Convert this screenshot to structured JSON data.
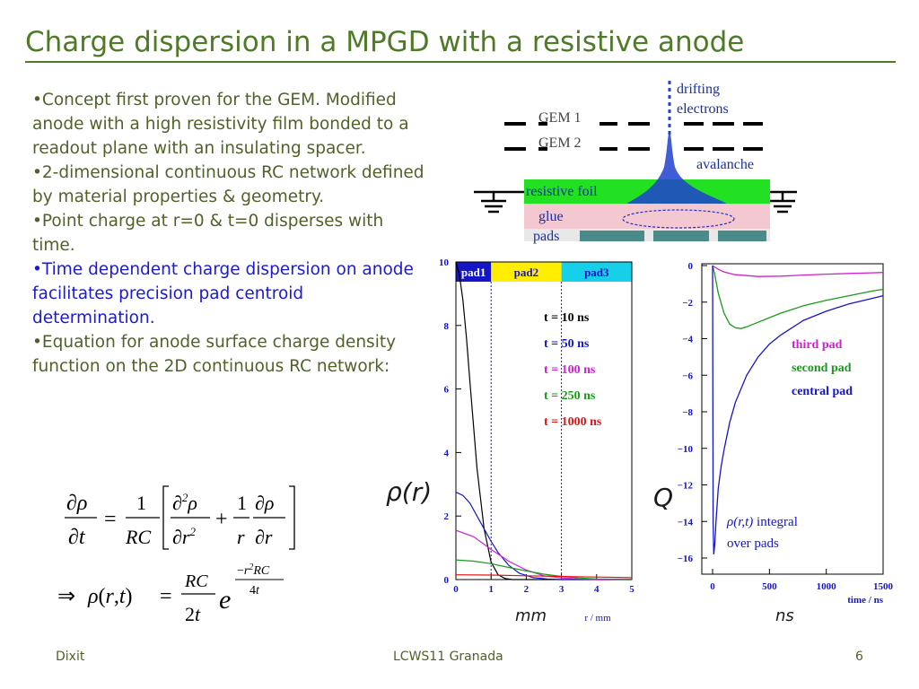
{
  "slide": {
    "title": "Charge dispersion in a MPGD with a resistive anode",
    "bullets": [
      {
        "text": "•Concept first proven for the GEM. Modified anode with a high resistivity film bonded to a readout plane with an insulating spacer.",
        "highlight": false
      },
      {
        "text": "•2-dimensional continuous RC network defined by material properties & geometry.",
        "highlight": false
      },
      {
        "text": "•Point charge at r=0 & t=0 disperses with time.",
        "highlight": false
      },
      {
        "text": "•Time dependent charge dispersion on anode facilitates precision pad centroid determination.",
        "highlight": true
      },
      {
        "text": "•Equation for anode surface charge density function on the 2D continuous RC network:",
        "highlight": false
      }
    ],
    "footer": {
      "left": "Dixit",
      "center": "LCWS11 Granada",
      "right": "6"
    }
  },
  "diagram": {
    "labels": {
      "drifting": "drifting",
      "electrons": "electrons",
      "gem1": "GEM 1",
      "gem2": "GEM 2",
      "avalanche": "avalanche",
      "resistive_foil": "resistive foil",
      "glue": "glue",
      "pads": "pads"
    }
  },
  "chart_data": [
    {
      "type": "line",
      "title": "",
      "ylabel": "ρ(r)",
      "xlabel": "r / mm",
      "unit_label": "mm",
      "xlim": [
        0,
        5
      ],
      "ylim": [
        0,
        10
      ],
      "xticks": [
        0,
        1,
        2,
        3,
        4,
        5
      ],
      "yticks": [
        0,
        2,
        4,
        6,
        8,
        10
      ],
      "pad_labels": [
        "pad1",
        "pad2",
        "pad3"
      ],
      "legend_placement": "top-right",
      "series": [
        {
          "name": "t = 10 ns",
          "color": "#000000",
          "x": [
            0,
            0.1,
            0.2,
            0.3,
            0.4,
            0.6,
            0.8,
            1.0,
            1.2,
            1.4,
            1.6,
            5
          ],
          "y": [
            10.0,
            9.6,
            8.8,
            7.6,
            6.2,
            3.5,
            1.6,
            0.55,
            0.15,
            0.03,
            0.0,
            0.0
          ]
        },
        {
          "name": "t = 50 ns",
          "color": "#1515c8",
          "x": [
            0,
            0.2,
            0.4,
            0.6,
            0.8,
            1.0,
            1.2,
            1.5,
            1.8,
            2.2,
            2.6,
            3.0,
            5
          ],
          "y": [
            2.75,
            2.65,
            2.4,
            2.0,
            1.6,
            1.2,
            0.85,
            0.45,
            0.2,
            0.06,
            0.02,
            0.0,
            0.0
          ]
        },
        {
          "name": "t = 100 ns",
          "color": "#d020d0",
          "x": [
            0,
            0.5,
            1.0,
            1.5,
            2.0,
            2.5,
            3.0,
            3.5,
            4.0,
            5
          ],
          "y": [
            1.55,
            1.35,
            0.95,
            0.58,
            0.3,
            0.12,
            0.05,
            0.02,
            0.0,
            0.0
          ]
        },
        {
          "name": "t = 250 ns",
          "color": "#1a9a1a",
          "x": [
            0,
            0.5,
            1.0,
            1.5,
            2.0,
            2.5,
            3.0,
            3.5,
            4.0,
            4.5,
            5.0
          ],
          "y": [
            0.62,
            0.58,
            0.5,
            0.38,
            0.27,
            0.17,
            0.1,
            0.05,
            0.02,
            0.01,
            0.0
          ]
        },
        {
          "name": "t = 1000 ns",
          "color": "#e01515",
          "x": [
            0,
            1,
            2,
            3,
            4,
            5
          ],
          "y": [
            0.15,
            0.14,
            0.12,
            0.1,
            0.08,
            0.06
          ]
        }
      ]
    },
    {
      "type": "line",
      "title": "",
      "ylabel": "Q",
      "xlabel": "time / ns",
      "unit_label": "ns",
      "xlim": [
        0,
        1500
      ],
      "ylim": [
        -16,
        0
      ],
      "xticks": [
        0,
        500,
        1000,
        1500
      ],
      "yticks": [
        0,
        -2,
        -4,
        -6,
        -8,
        -10,
        -12,
        -14,
        -16
      ],
      "legend_placement": "right",
      "annotation": {
        "symbol": "ρ",
        "args": "(r,t)",
        "suffix": " integral",
        "line2": "over pads"
      },
      "series": [
        {
          "name": "third pad",
          "color": "#d020d0",
          "x": [
            0,
            10,
            50,
            100,
            200,
            300,
            400,
            600,
            800,
            1000,
            1200,
            1400,
            1500
          ],
          "y": [
            0,
            -0.05,
            -0.2,
            -0.35,
            -0.5,
            -0.55,
            -0.6,
            -0.58,
            -0.52,
            -0.47,
            -0.43,
            -0.4,
            -0.38
          ]
        },
        {
          "name": "second pad",
          "color": "#1a9a1a",
          "x": [
            0,
            20,
            50,
            100,
            150,
            200,
            250,
            300,
            400,
            500,
            600,
            800,
            1000,
            1200,
            1400,
            1500
          ],
          "y": [
            0,
            -0.5,
            -1.5,
            -2.6,
            -3.2,
            -3.4,
            -3.45,
            -3.35,
            -3.1,
            -2.85,
            -2.6,
            -2.2,
            -1.9,
            -1.65,
            -1.4,
            -1.3
          ]
        },
        {
          "name": "central pad",
          "color": "#1515c8",
          "x": [
            0,
            5,
            10,
            20,
            30,
            50,
            75,
            100,
            150,
            200,
            300,
            400,
            500,
            600,
            800,
            1000,
            1200,
            1400,
            1500
          ],
          "y": [
            0,
            -14.0,
            -15.8,
            -15.2,
            -14.0,
            -12.2,
            -11.0,
            -10.1,
            -8.6,
            -7.5,
            -6.0,
            -5.0,
            -4.3,
            -3.8,
            -3.0,
            -2.5,
            -2.1,
            -1.8,
            -1.65
          ]
        }
      ]
    }
  ]
}
